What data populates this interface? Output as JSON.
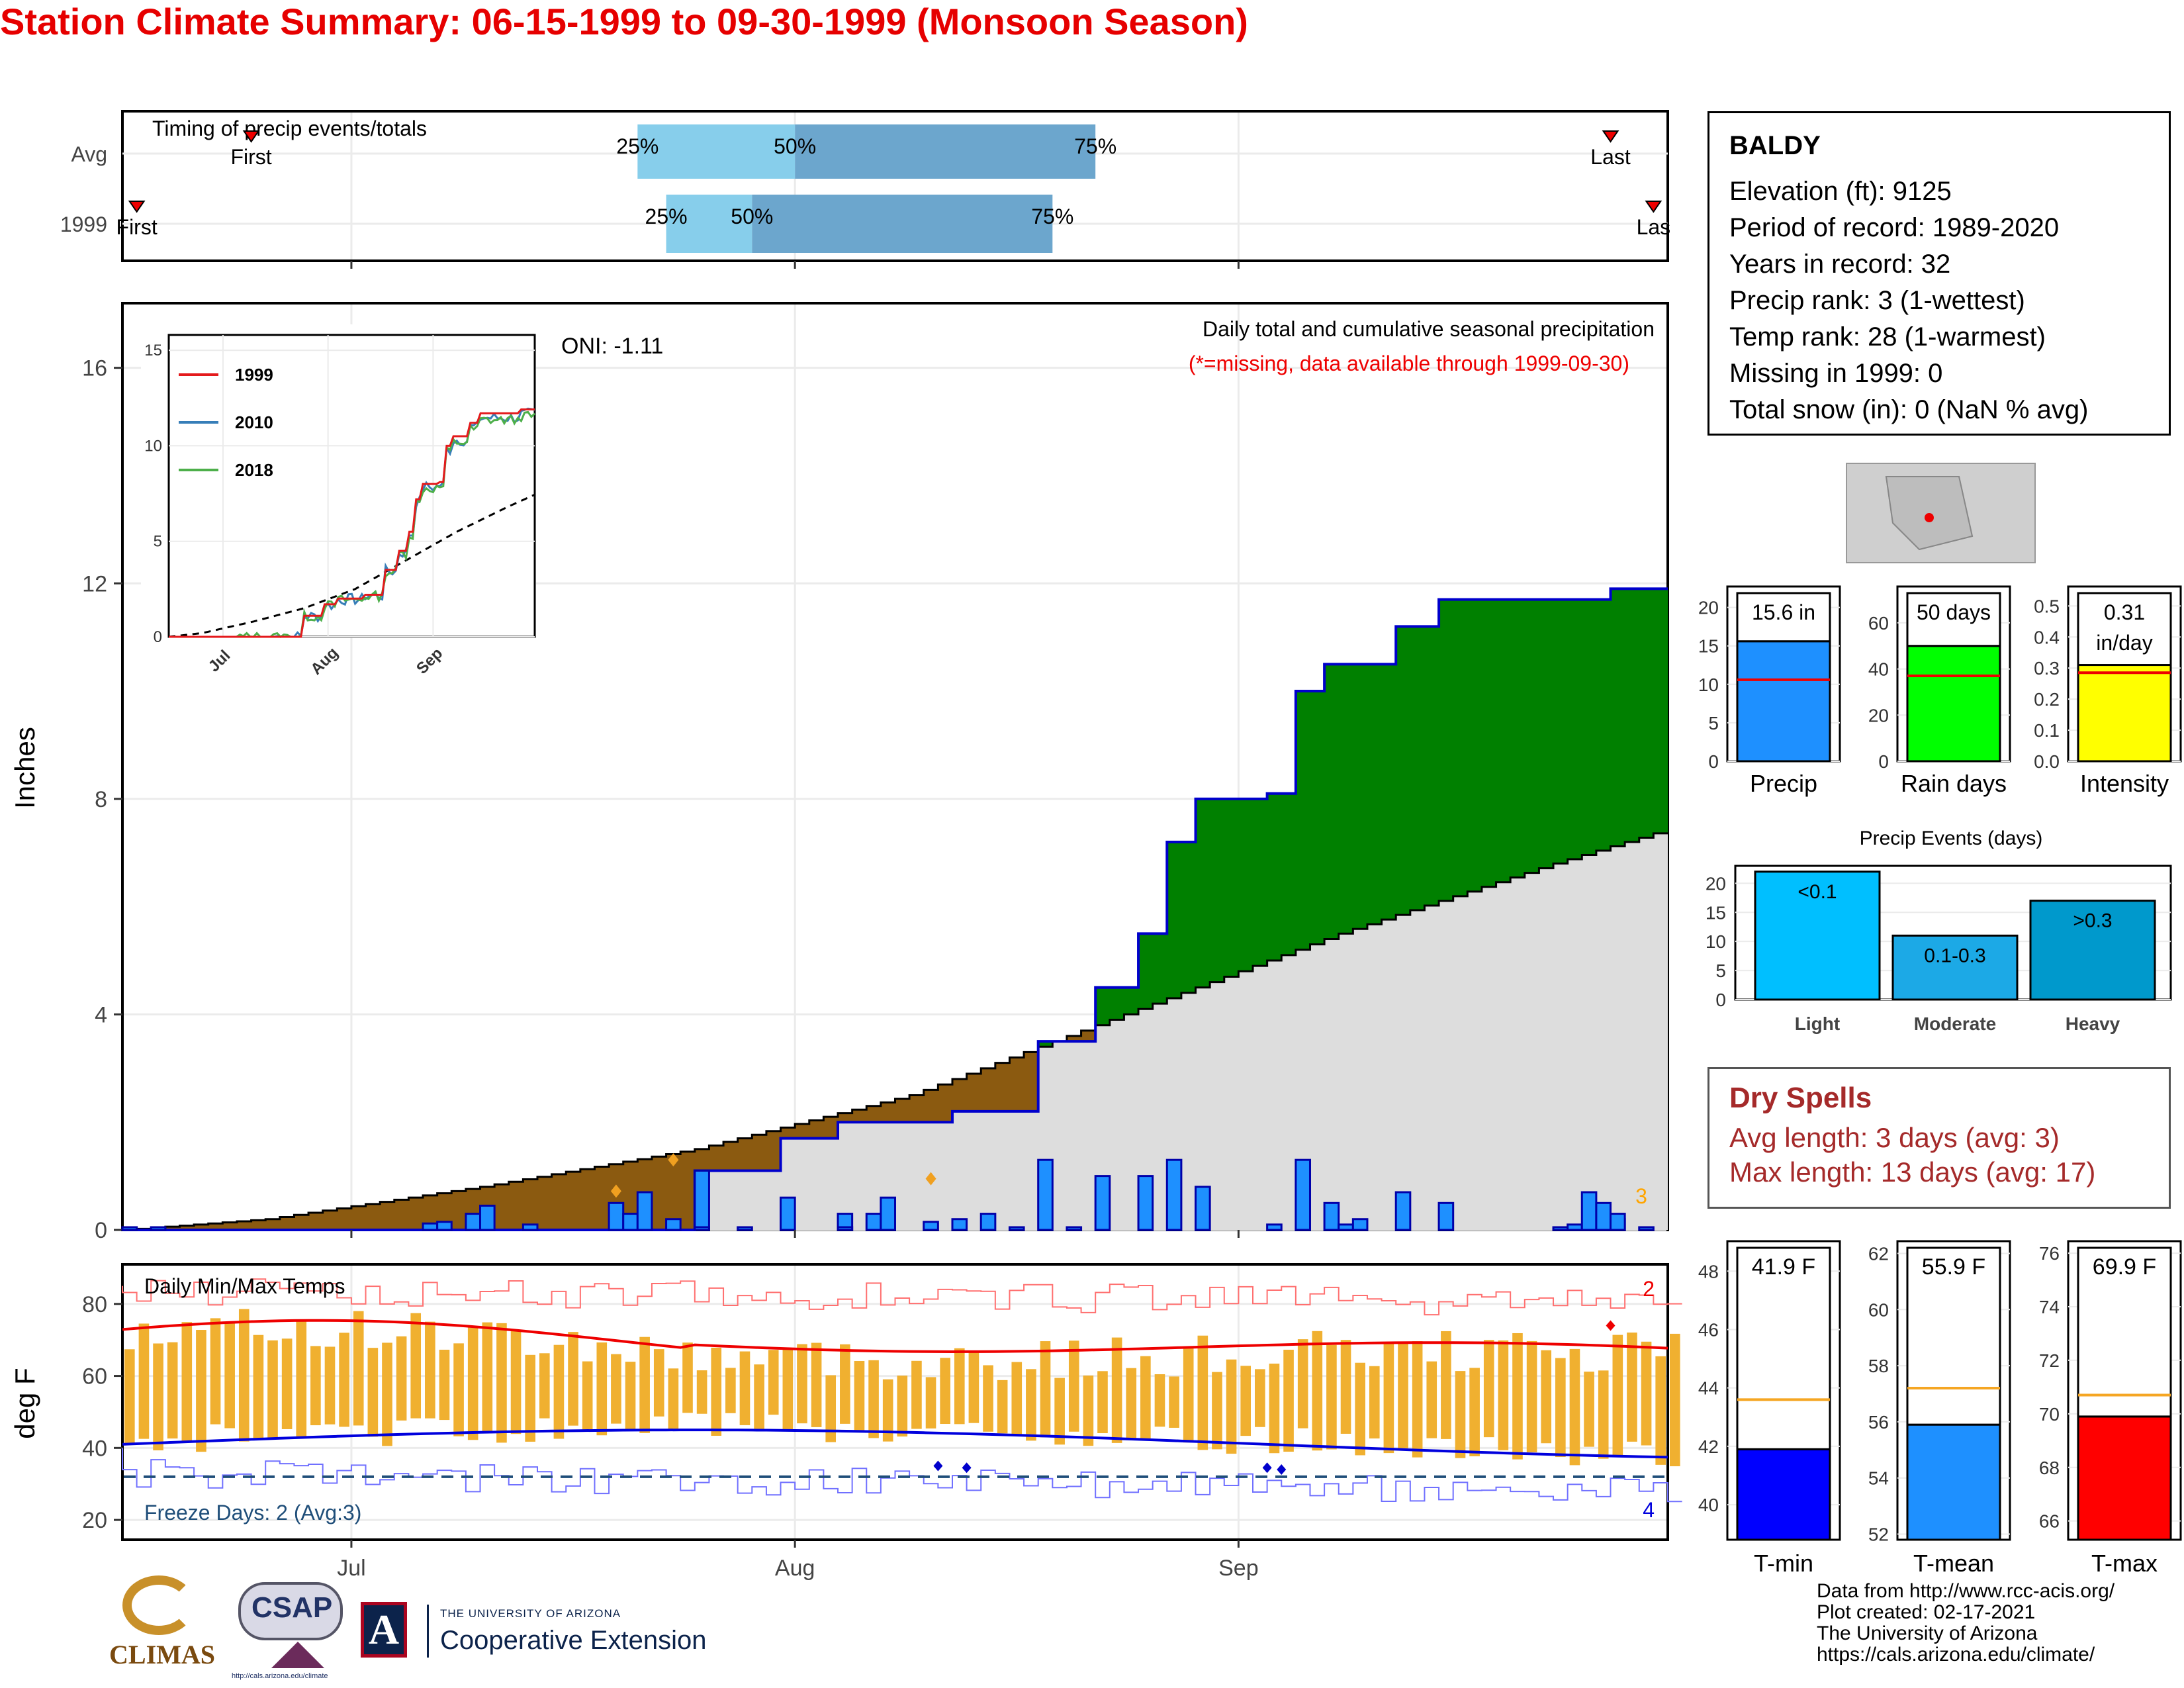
{
  "title": "Station Climate Summary: 06-15-1999 to 09-30-1999 (Monsoon Season)",
  "timing": {
    "label": "Timing of precip events/totals",
    "rows": [
      "Avg",
      "1999"
    ],
    "avg": {
      "first": "06-24",
      "p25": "07-21",
      "p50": "08-01",
      "p75": "08-22",
      "last": "09-27"
    },
    "y1999": {
      "first": "06-16",
      "p25": "07-23",
      "p50": "07-29",
      "p75": "08-19",
      "last": "09-30"
    },
    "first_label": "First",
    "last_label": "Last",
    "last_label_1999": "Las",
    "pct_labels": [
      "25%",
      "50%",
      "75%"
    ]
  },
  "precip_panel": {
    "ylabel": "Inches",
    "annotation": "Daily total and cumulative seasonal precipitation",
    "missing_note": "(*=missing, data available through 1999-09-30)",
    "oni": "ONI: -1.11",
    "corner_count": "3",
    "y_ticks": [
      "0",
      "4",
      "8",
      "12",
      "16"
    ]
  },
  "inset": {
    "y_ticks": [
      "0",
      "5",
      "10",
      "15"
    ],
    "x_ticks": [
      "Jul",
      "Aug",
      "Sep"
    ],
    "legend": [
      {
        "name": "1999",
        "color": "#e41a1c"
      },
      {
        "name": "2010",
        "color": "#377eb8"
      },
      {
        "name": "2018",
        "color": "#4daf4a"
      }
    ]
  },
  "temp_panel": {
    "ylabel": "deg F",
    "label": "Daily Min/Max Temps",
    "freeze": "Freeze Days: 2 (Avg:3)",
    "corner_top": "2",
    "corner_bottom": "4",
    "y_ticks": [
      "20",
      "40",
      "60",
      "80"
    ],
    "x_ticks": [
      "Jul",
      "Aug",
      "Sep"
    ]
  },
  "station": {
    "name": "BALDY",
    "lines": [
      "Elevation (ft): 9125",
      "Period of record: 1989-2020",
      "Years in record: 32",
      "Precip rank: 3 (1-wettest)",
      "Temp rank: 28 (1-warmest)",
      "Missing in 1999: 0",
      "Total snow (in): 0 (NaN % avg)"
    ]
  },
  "summary_bars": [
    {
      "label": "Precip",
      "value": 15.6,
      "avg": 10.6,
      "text": "15.6 in",
      "ymax": 21,
      "ticks": [
        "0",
        "5",
        "10",
        "15",
        "20"
      ],
      "color": "#1e90ff"
    },
    {
      "label": "Rain days",
      "value": 50,
      "avg": 37,
      "text": "50 days",
      "ymax": 70,
      "ticks": [
        "0",
        "20",
        "40",
        "60"
      ],
      "color": "#00ff00"
    },
    {
      "label": "Intensity",
      "value": 0.31,
      "avg": 0.285,
      "text": "0.31",
      "text2": "in/day",
      "ymax": 0.52,
      "ticks": [
        "0.0",
        "0.1",
        "0.2",
        "0.3",
        "0.4",
        "0.5"
      ],
      "color": "#ffff00"
    }
  ],
  "events": {
    "title": "Precip Events (days)",
    "ticks": [
      "0",
      "5",
      "10",
      "15",
      "20"
    ],
    "bars": [
      {
        "cat": "Light",
        "label": "<0.1",
        "value": 22,
        "color": "#00bfff"
      },
      {
        "cat": "Moderate",
        "label": "0.1-0.3",
        "value": 11,
        "color": "#1ca9e6"
      },
      {
        "cat": "Heavy",
        "label": ">0.3",
        "value": 17,
        "color": "#0099cc"
      }
    ]
  },
  "dry_spells": {
    "title": "Dry Spells",
    "avg_line": "Avg length: 3 days (avg: 3)",
    "max_line": "Max length: 13 days (avg: 17)"
  },
  "temp_bars": [
    {
      "label": "T-min",
      "value": 41.9,
      "avg": 43.6,
      "text": "41.9 F",
      "ymin": 38.8,
      "ymax": 48.8,
      "ticks": [
        "40",
        "42",
        "44",
        "46",
        "48"
      ],
      "color": "#0000ff"
    },
    {
      "label": "T-mean",
      "value": 55.9,
      "avg": 57.2,
      "text": "55.9 F",
      "ymin": 51.8,
      "ymax": 62.2,
      "ticks": [
        "52",
        "54",
        "56",
        "58",
        "60",
        "62"
      ],
      "color": "#1e90ff"
    },
    {
      "label": "T-max",
      "value": 69.9,
      "avg": 70.7,
      "text": "69.9 F",
      "ymin": 65.3,
      "ymax": 76.2,
      "ticks": [
        "66",
        "68",
        "70",
        "72",
        "74",
        "76"
      ],
      "color": "#ff0000"
    }
  ],
  "credits": [
    "Data from http://www.rcc-acis.org/",
    "Plot created: 02-17-2021",
    "The University of Arizona",
    "https://cals.arizona.edu/climate/"
  ],
  "logos": {
    "climas": "CLIMAS",
    "csap": "CSAP",
    "csap_url": "http://cals.arizona.edu/climate",
    "ua_line1": "THE UNIVERSITY OF ARIZONA",
    "ua_line2": "Cooperative Extension"
  },
  "chart_data": {
    "type": "area",
    "x_start": "1999-06-15",
    "x_end": "1999-09-30",
    "cumulative_1999_in": [
      [
        0,
        0
      ],
      [
        20,
        0
      ],
      [
        40,
        1.1
      ],
      [
        46,
        1.7
      ],
      [
        50,
        2.0
      ],
      [
        58,
        2.2
      ],
      [
        64,
        3.5
      ],
      [
        68,
        4.5
      ],
      [
        71,
        5.5
      ],
      [
        73,
        7.2
      ],
      [
        75,
        8.0
      ],
      [
        80,
        8.1
      ],
      [
        82,
        10.0
      ],
      [
        84,
        10.5
      ],
      [
        89,
        11.2
      ],
      [
        92,
        11.7
      ],
      [
        104,
        11.9
      ],
      [
        113,
        12.2
      ],
      [
        118,
        12.6
      ],
      [
        130,
        13.1
      ],
      [
        136,
        14.3
      ],
      [
        142,
        14.6
      ],
      [
        147,
        15.3
      ],
      [
        152,
        15.4
      ]
    ],
    "cumulative_avg_in": [
      [
        0,
        0
      ],
      [
        10,
        0.2
      ],
      [
        25,
        0.8
      ],
      [
        40,
        1.5
      ],
      [
        55,
        2.5
      ],
      [
        70,
        4.0
      ],
      [
        85,
        5.5
      ],
      [
        100,
        6.8
      ],
      [
        115,
        8.0
      ],
      [
        130,
        9.0
      ],
      [
        145,
        9.7
      ],
      [
        160,
        10.4
      ]
    ],
    "temperature_series": [
      "daily max",
      "daily min",
      "avg max",
      "avg min",
      "record max",
      "record min"
    ],
    "freeze_threshold_f": 32,
    "inset_series": [
      "1999",
      "2010",
      "2018",
      "avg"
    ]
  }
}
